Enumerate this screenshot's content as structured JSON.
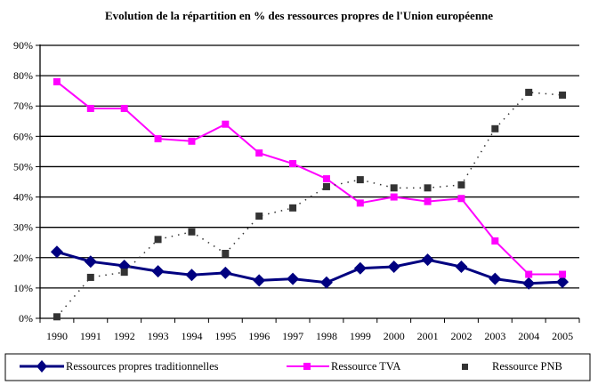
{
  "chart_data": {
    "type": "line",
    "title": "Evolution de la répartition en % des ressources propres de l'Union européenne",
    "xlabel": "",
    "ylabel": "",
    "categories": [
      "1990",
      "1991",
      "1992",
      "1993",
      "1994",
      "1995",
      "1996",
      "1997",
      "1998",
      "1999",
      "2000",
      "2001",
      "2002",
      "2003",
      "2004",
      "2005"
    ],
    "ylim": [
      0,
      90
    ],
    "yticks": [
      0,
      10,
      20,
      30,
      40,
      50,
      60,
      70,
      80,
      90
    ],
    "ytick_labels": [
      "0%",
      "10%",
      "20%",
      "30%",
      "40%",
      "50%",
      "60%",
      "70%",
      "80%",
      "90%"
    ],
    "grid": true,
    "legend_position": "bottom",
    "series": [
      {
        "name": "Ressources propres traditionnelles",
        "color": "#000080",
        "marker": "diamond",
        "line_style": "solid",
        "values": [
          21.9,
          18.7,
          17.3,
          15.5,
          14.3,
          15.0,
          12.5,
          13.0,
          11.8,
          16.5,
          17.0,
          19.3,
          17.0,
          13.0,
          11.5,
          12.0
        ]
      },
      {
        "name": "Ressource TVA",
        "color": "#FF00FF",
        "marker": "square",
        "line_style": "solid",
        "values": [
          78.0,
          69.2,
          69.2,
          59.2,
          58.4,
          64.0,
          54.5,
          51.0,
          46.0,
          38.0,
          40.0,
          38.5,
          39.5,
          25.5,
          14.5,
          14.5
        ]
      },
      {
        "name": "Ressource PNB",
        "color": "#333333",
        "marker": "square",
        "line_style": "dotted",
        "values": [
          0.5,
          13.5,
          15.2,
          26.0,
          28.5,
          21.4,
          33.7,
          36.4,
          43.4,
          45.7,
          43.0,
          43.0,
          44.0,
          62.5,
          74.5,
          73.6
        ]
      }
    ]
  }
}
